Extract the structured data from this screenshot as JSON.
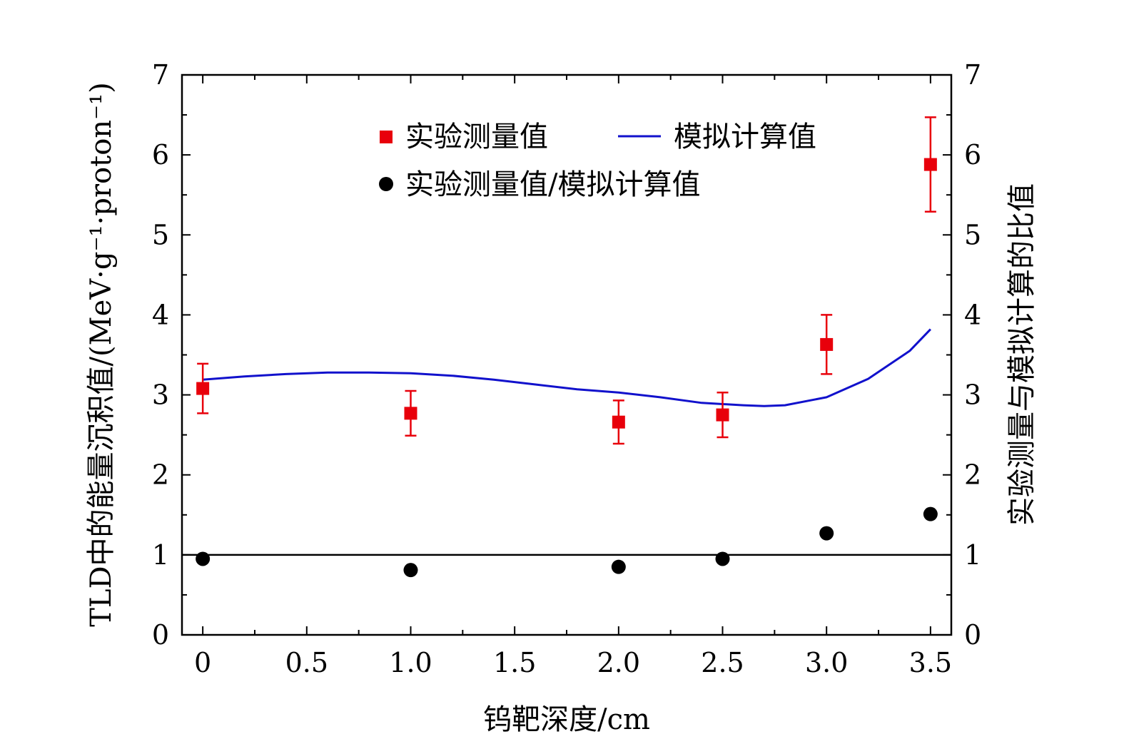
{
  "chart_data": {
    "type": "scatter",
    "xlabel": "钨靶深度/cm",
    "ylabel_left": "TLD中的能量沉积值/(MeV·g⁻¹·proton⁻¹)",
    "ylabel_right": "实验测量与模拟计算的比值",
    "x_tick_labels": [
      "0",
      "0.5",
      "1.0",
      "1.5",
      "2.0",
      "2.5",
      "3.0",
      "3.5"
    ],
    "x_ticks": [
      0,
      0.5,
      1.0,
      1.5,
      2.0,
      2.5,
      3.0,
      3.5
    ],
    "y_tick_labels": [
      "0",
      "1",
      "2",
      "3",
      "4",
      "5",
      "6",
      "7"
    ],
    "y_ticks": [
      0,
      1,
      2,
      3,
      4,
      5,
      6,
      7
    ],
    "xlim": [
      -0.1,
      3.6
    ],
    "ylim": [
      0,
      7
    ],
    "y2lim": [
      0,
      7
    ],
    "reference_line_y": 1,
    "legend_position": "top-center",
    "series": [
      {
        "name": "实验测量值",
        "kind": "points_with_error",
        "marker": "square",
        "color": "#e8000b",
        "x": [
          0,
          1.0,
          2.0,
          2.5,
          3.0,
          3.5
        ],
        "y": [
          3.08,
          2.77,
          2.66,
          2.75,
          3.63,
          5.88
        ],
        "err": [
          0.31,
          0.28,
          0.27,
          0.28,
          0.37,
          0.59
        ]
      },
      {
        "name": "模拟计算值",
        "kind": "line",
        "color": "#1111cc",
        "x": [
          0,
          0.2,
          0.4,
          0.6,
          0.8,
          1.0,
          1.2,
          1.4,
          1.6,
          1.8,
          2.0,
          2.2,
          2.4,
          2.6,
          2.7,
          2.8,
          3.0,
          3.2,
          3.4,
          3.5
        ],
        "y": [
          3.19,
          3.23,
          3.26,
          3.28,
          3.28,
          3.27,
          3.24,
          3.19,
          3.13,
          3.07,
          3.03,
          2.97,
          2.9,
          2.87,
          2.86,
          2.87,
          2.97,
          3.2,
          3.55,
          3.82
        ]
      },
      {
        "name": "实验测量值/模拟计算值",
        "kind": "points",
        "marker": "circle",
        "color": "#000000",
        "x": [
          0,
          1.0,
          2.0,
          2.5,
          3.0,
          3.5
        ],
        "y": [
          0.95,
          0.81,
          0.85,
          0.95,
          1.27,
          1.51
        ]
      }
    ]
  }
}
